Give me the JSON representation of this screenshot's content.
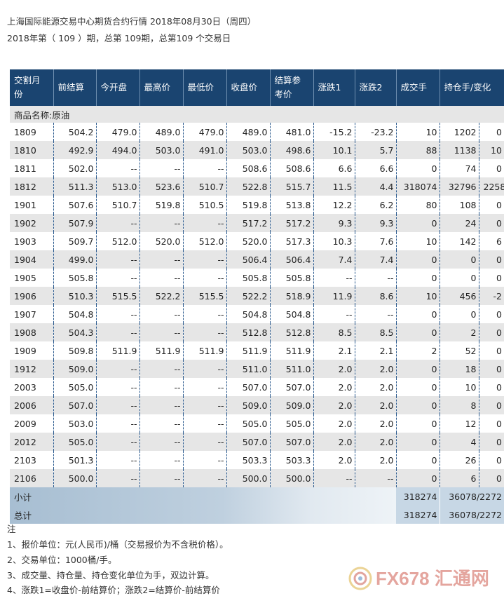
{
  "header": {
    "title": "上海国际能源交易中心期货合约行情 2018年08月30日（周四）",
    "subtitle": "2018年第（ 109 ）期，总第 109期，总第109 个交易日"
  },
  "table": {
    "columns": [
      "交割月份",
      "前结算",
      "今开盘",
      "最高价",
      "最低价",
      "收盘价",
      "结算参考价",
      "涨跌1",
      "涨跌2",
      "成交手",
      "持仓手/变化"
    ],
    "category": "商品名称:原油",
    "rows": [
      [
        "1809",
        "504.2",
        "479.0",
        "489.0",
        "479.0",
        "489.0",
        "481.0",
        "-15.2",
        "-23.2",
        "10",
        "1202",
        "0"
      ],
      [
        "1810",
        "492.9",
        "494.0",
        "503.0",
        "491.0",
        "503.0",
        "498.6",
        "10.1",
        "5.7",
        "88",
        "1138",
        "10"
      ],
      [
        "1811",
        "502.0",
        "--",
        "--",
        "--",
        "508.6",
        "508.6",
        "6.6",
        "6.6",
        "0",
        "74",
        "0"
      ],
      [
        "1812",
        "511.3",
        "513.0",
        "523.6",
        "510.7",
        "522.8",
        "515.7",
        "11.5",
        "4.4",
        "318074",
        "32796",
        "2258"
      ],
      [
        "1901",
        "507.6",
        "510.7",
        "519.8",
        "510.5",
        "519.8",
        "513.8",
        "12.2",
        "6.2",
        "80",
        "108",
        "0"
      ],
      [
        "1902",
        "507.9",
        "--",
        "--",
        "--",
        "517.2",
        "517.2",
        "9.3",
        "9.3",
        "0",
        "24",
        "0"
      ],
      [
        "1903",
        "509.7",
        "512.0",
        "520.0",
        "512.0",
        "520.0",
        "517.3",
        "10.3",
        "7.6",
        "10",
        "142",
        "6"
      ],
      [
        "1904",
        "499.0",
        "--",
        "--",
        "--",
        "506.4",
        "506.4",
        "7.4",
        "7.4",
        "0",
        "0",
        "0"
      ],
      [
        "1905",
        "505.8",
        "--",
        "--",
        "--",
        "505.8",
        "505.8",
        "--",
        "--",
        "0",
        "0",
        "0"
      ],
      [
        "1906",
        "510.3",
        "515.5",
        "522.2",
        "515.5",
        "522.2",
        "518.9",
        "11.9",
        "8.6",
        "10",
        "456",
        "-2"
      ],
      [
        "1907",
        "504.8",
        "--",
        "--",
        "--",
        "504.8",
        "504.8",
        "--",
        "--",
        "0",
        "0",
        "0"
      ],
      [
        "1908",
        "504.3",
        "--",
        "--",
        "--",
        "512.8",
        "512.8",
        "8.5",
        "8.5",
        "0",
        "2",
        "0"
      ],
      [
        "1909",
        "509.8",
        "511.9",
        "511.9",
        "511.9",
        "511.9",
        "511.9",
        "2.1",
        "2.1",
        "2",
        "52",
        "0"
      ],
      [
        "1912",
        "509.0",
        "--",
        "--",
        "--",
        "511.0",
        "511.0",
        "2.0",
        "2.0",
        "0",
        "18",
        "0"
      ],
      [
        "2003",
        "505.0",
        "--",
        "--",
        "--",
        "507.0",
        "507.0",
        "2.0",
        "2.0",
        "0",
        "10",
        "0"
      ],
      [
        "2006",
        "507.0",
        "--",
        "--",
        "--",
        "509.0",
        "509.0",
        "2.0",
        "2.0",
        "0",
        "8",
        "0"
      ],
      [
        "2009",
        "503.0",
        "--",
        "--",
        "--",
        "505.0",
        "505.0",
        "2.0",
        "2.0",
        "0",
        "12",
        "0"
      ],
      [
        "2012",
        "505.0",
        "--",
        "--",
        "--",
        "507.0",
        "507.0",
        "2.0",
        "2.0",
        "0",
        "4",
        "0"
      ],
      [
        "2103",
        "501.3",
        "--",
        "--",
        "--",
        "503.3",
        "503.3",
        "2.0",
        "2.0",
        "0",
        "26",
        "0"
      ],
      [
        "2106",
        "500.0",
        "--",
        "--",
        "--",
        "500.0",
        "500.0",
        "--",
        "--",
        "0",
        "6",
        "0"
      ]
    ],
    "subtotal": {
      "label": "小计",
      "volume": "318274",
      "open_interest": "36078/2272"
    },
    "total": {
      "label": "总计",
      "volume": "318274",
      "open_interest": "36078/2272"
    }
  },
  "notes": {
    "title": "注",
    "items": [
      "1、报价单位：元(人民币)/桶（交易报价为不含税价格）。",
      "2、交易单位：1000桶/手。",
      "3、成交量、持仓量、持仓变化单位为手，双边计算。",
      "4、涨跌1=收盘价-前结算价；涨跌2=结算价-前结算价"
    ]
  },
  "watermark": {
    "text": "FX678 汇通网",
    "icon": "fx678-logo-icon"
  },
  "colors": {
    "header_bg": "#1a4470",
    "row_alt": "#e6e6e6",
    "border_dash": "#2b5a8e"
  }
}
